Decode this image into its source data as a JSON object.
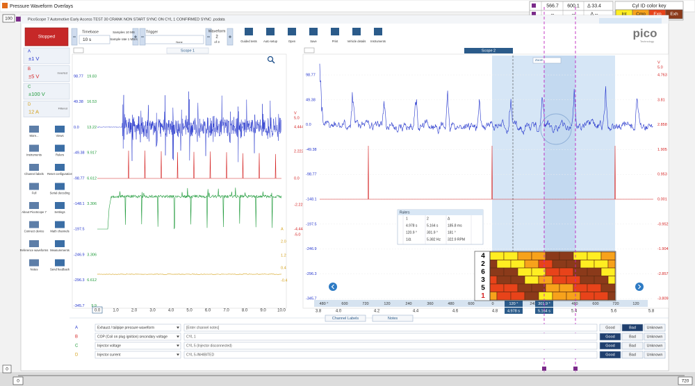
{
  "window_title": "Pressure Waveform Overlays",
  "edge_labels": {
    "top_left": "100",
    "bottom_left": "0",
    "bottom_start": "0",
    "bottom_end": "720"
  },
  "ruler_readout": [
    [
      "566.7",
      "600.1",
      "Δ 33.4"
    ],
    [
      "--",
      "--",
      "Δ --"
    ]
  ],
  "color_key": {
    "title": "Cyl ID color key",
    "items": [
      {
        "label": "Int",
        "color": "#ffee22"
      },
      {
        "label": "Cmp",
        "color": "#f7a21b"
      },
      {
        "label": "Exp",
        "color": "#e8431a"
      },
      {
        "label": "Exh",
        "color": "#8b3a1a"
      }
    ]
  },
  "app": {
    "title": "PicoScope 7 Automotive Early Access TEST 30 CRANK NON START SYNC ON CYL 1 CONFIRMED SYNC .psdata",
    "logo": "pico",
    "logo_sub": "Technology"
  },
  "toolbar": {
    "status": "Stopped",
    "timebase_label": "Timebase",
    "timebase": "10 s",
    "samples": "Samples 10 MS",
    "sample_rate": "Sample rate 1 MS/s",
    "trigger_label": "Trigger",
    "trigger": "None",
    "waveform_label": "Waveform",
    "waveform": "2",
    "waveform_of": "of 3",
    "buttons": [
      "Guided tests",
      "Auto setup",
      "Open",
      "Save",
      "Print",
      "Vehicle details",
      "Instruments"
    ]
  },
  "channels": [
    {
      "letter": "A",
      "range": "±1 V",
      "color": "#2233cc"
    },
    {
      "letter": "B",
      "range": "±5 V",
      "color": "#d42020",
      "note": "Inverted"
    },
    {
      "letter": "C",
      "range": "±100 V",
      "color": "#1e9a3a"
    },
    {
      "letter": "D",
      "range": "12 A",
      "color": "#d4a017",
      "note": "Filtered"
    }
  ],
  "tools": [
    "More...",
    "Views",
    "Instruments",
    "Rulers",
    "Channel labels",
    "Reset configuration",
    "Full",
    "Serial decoding",
    "About PicoScope 7",
    "Settings",
    "Connect device",
    "Math channels",
    "Reference waveforms",
    "Measurements",
    "Notes",
    "Send feedback"
  ],
  "scope1": {
    "title": "Scope 1",
    "axis_left": [
      {
        "a": "98.77",
        "c": "19.83"
      },
      {
        "a": "49.38",
        "c": "16.53"
      },
      {
        "a": "0.0",
        "c": "13.22"
      },
      {
        "a": "-49.38",
        "c": "9.917"
      },
      {
        "a": "-98.77",
        "c": "6.612"
      },
      {
        "a": "-148.1",
        "c": "3.306"
      },
      {
        "a": "-197.5"
      },
      {
        "a": "-246.9",
        "c": "3.306"
      },
      {
        "a": "-296.3",
        "c": "6.612"
      },
      {
        "a": "-345.7",
        "c": "9.9"
      }
    ],
    "axis_b_unit": "V",
    "axis_b": [
      "5.0",
      "4.444",
      "2.222",
      "0.0",
      "-2.222",
      "-4.444",
      "-5.0"
    ],
    "axis_d_unit": "A",
    "axis_d": [
      "2.0",
      "1.2",
      "0.4",
      "-0.4"
    ],
    "x_axis": [
      "0.0",
      "1.0",
      "2.0",
      "3.0",
      "4.0",
      "5.0",
      "6.0",
      "7.0",
      "8.0",
      "9.0",
      "10.0"
    ]
  },
  "scope2": {
    "title": "Scope 2",
    "zoom": "Zoom",
    "axis_left": [
      "98.77",
      "49.38",
      "0.0",
      "-49.38",
      "-98.77",
      "-148.1",
      "-197.5",
      "-246.9",
      "-296.3",
      "-345.7"
    ],
    "axis_b_unit": "V",
    "axis_b": [
      "5.0",
      "4.763",
      "3.81",
      "2.858",
      "1.905",
      "0.953",
      "0.001",
      "-0.952",
      "-1.904",
      "-2.857",
      "-3.809"
    ],
    "x_angle": [
      "480 °",
      "600",
      "720",
      "120",
      "240",
      "360",
      "480",
      "600",
      "0",
      "120 °",
      "240",
      "301.9 °",
      "480",
      "600",
      "720",
      "120"
    ],
    "x_time": [
      "3.8",
      "4.0",
      "4.2",
      "4.4",
      "4.6",
      "4.8",
      "5.4",
      "5.6",
      "5.8"
    ],
    "ruler_times": [
      "4.978 s",
      "5.164 s"
    ]
  },
  "rulers": {
    "title": "Rulers",
    "header": [
      "1",
      "2",
      "Δ"
    ],
    "rows": [
      [
        "4.978 s",
        "5.164 s",
        "185.8 ms"
      ],
      [
        "120.9 °",
        "301.9 °",
        "181 °"
      ],
      [
        "1/Δ",
        "5.382 Hz",
        "322.9 RPM"
      ]
    ]
  },
  "cylinder_order": [
    "4",
    "2",
    "6",
    "3",
    "5",
    "1"
  ],
  "bottom_tabs": [
    "Channel Labels",
    "Notes"
  ],
  "channel_labels": {
    "rating_options": [
      "Good",
      "Bad",
      "Unknown"
    ],
    "rows": [
      {
        "letter": "A",
        "name": "Exhaust / tailpipe pressure waveform",
        "notes": "[Enter channel notes]",
        "rating": "Bad"
      },
      {
        "letter": "B",
        "name": "COP (Coil on plug ignition) secondary voltage",
        "notes": "CYL 1",
        "rating": "Good"
      },
      {
        "letter": "C",
        "name": "Injector voltage",
        "notes": "CYL 5 (Injector disconnected)",
        "rating": "Good"
      },
      {
        "letter": "D",
        "name": "Injector current",
        "notes": "CYL 5-INHIBITED",
        "rating": "Good"
      }
    ]
  }
}
